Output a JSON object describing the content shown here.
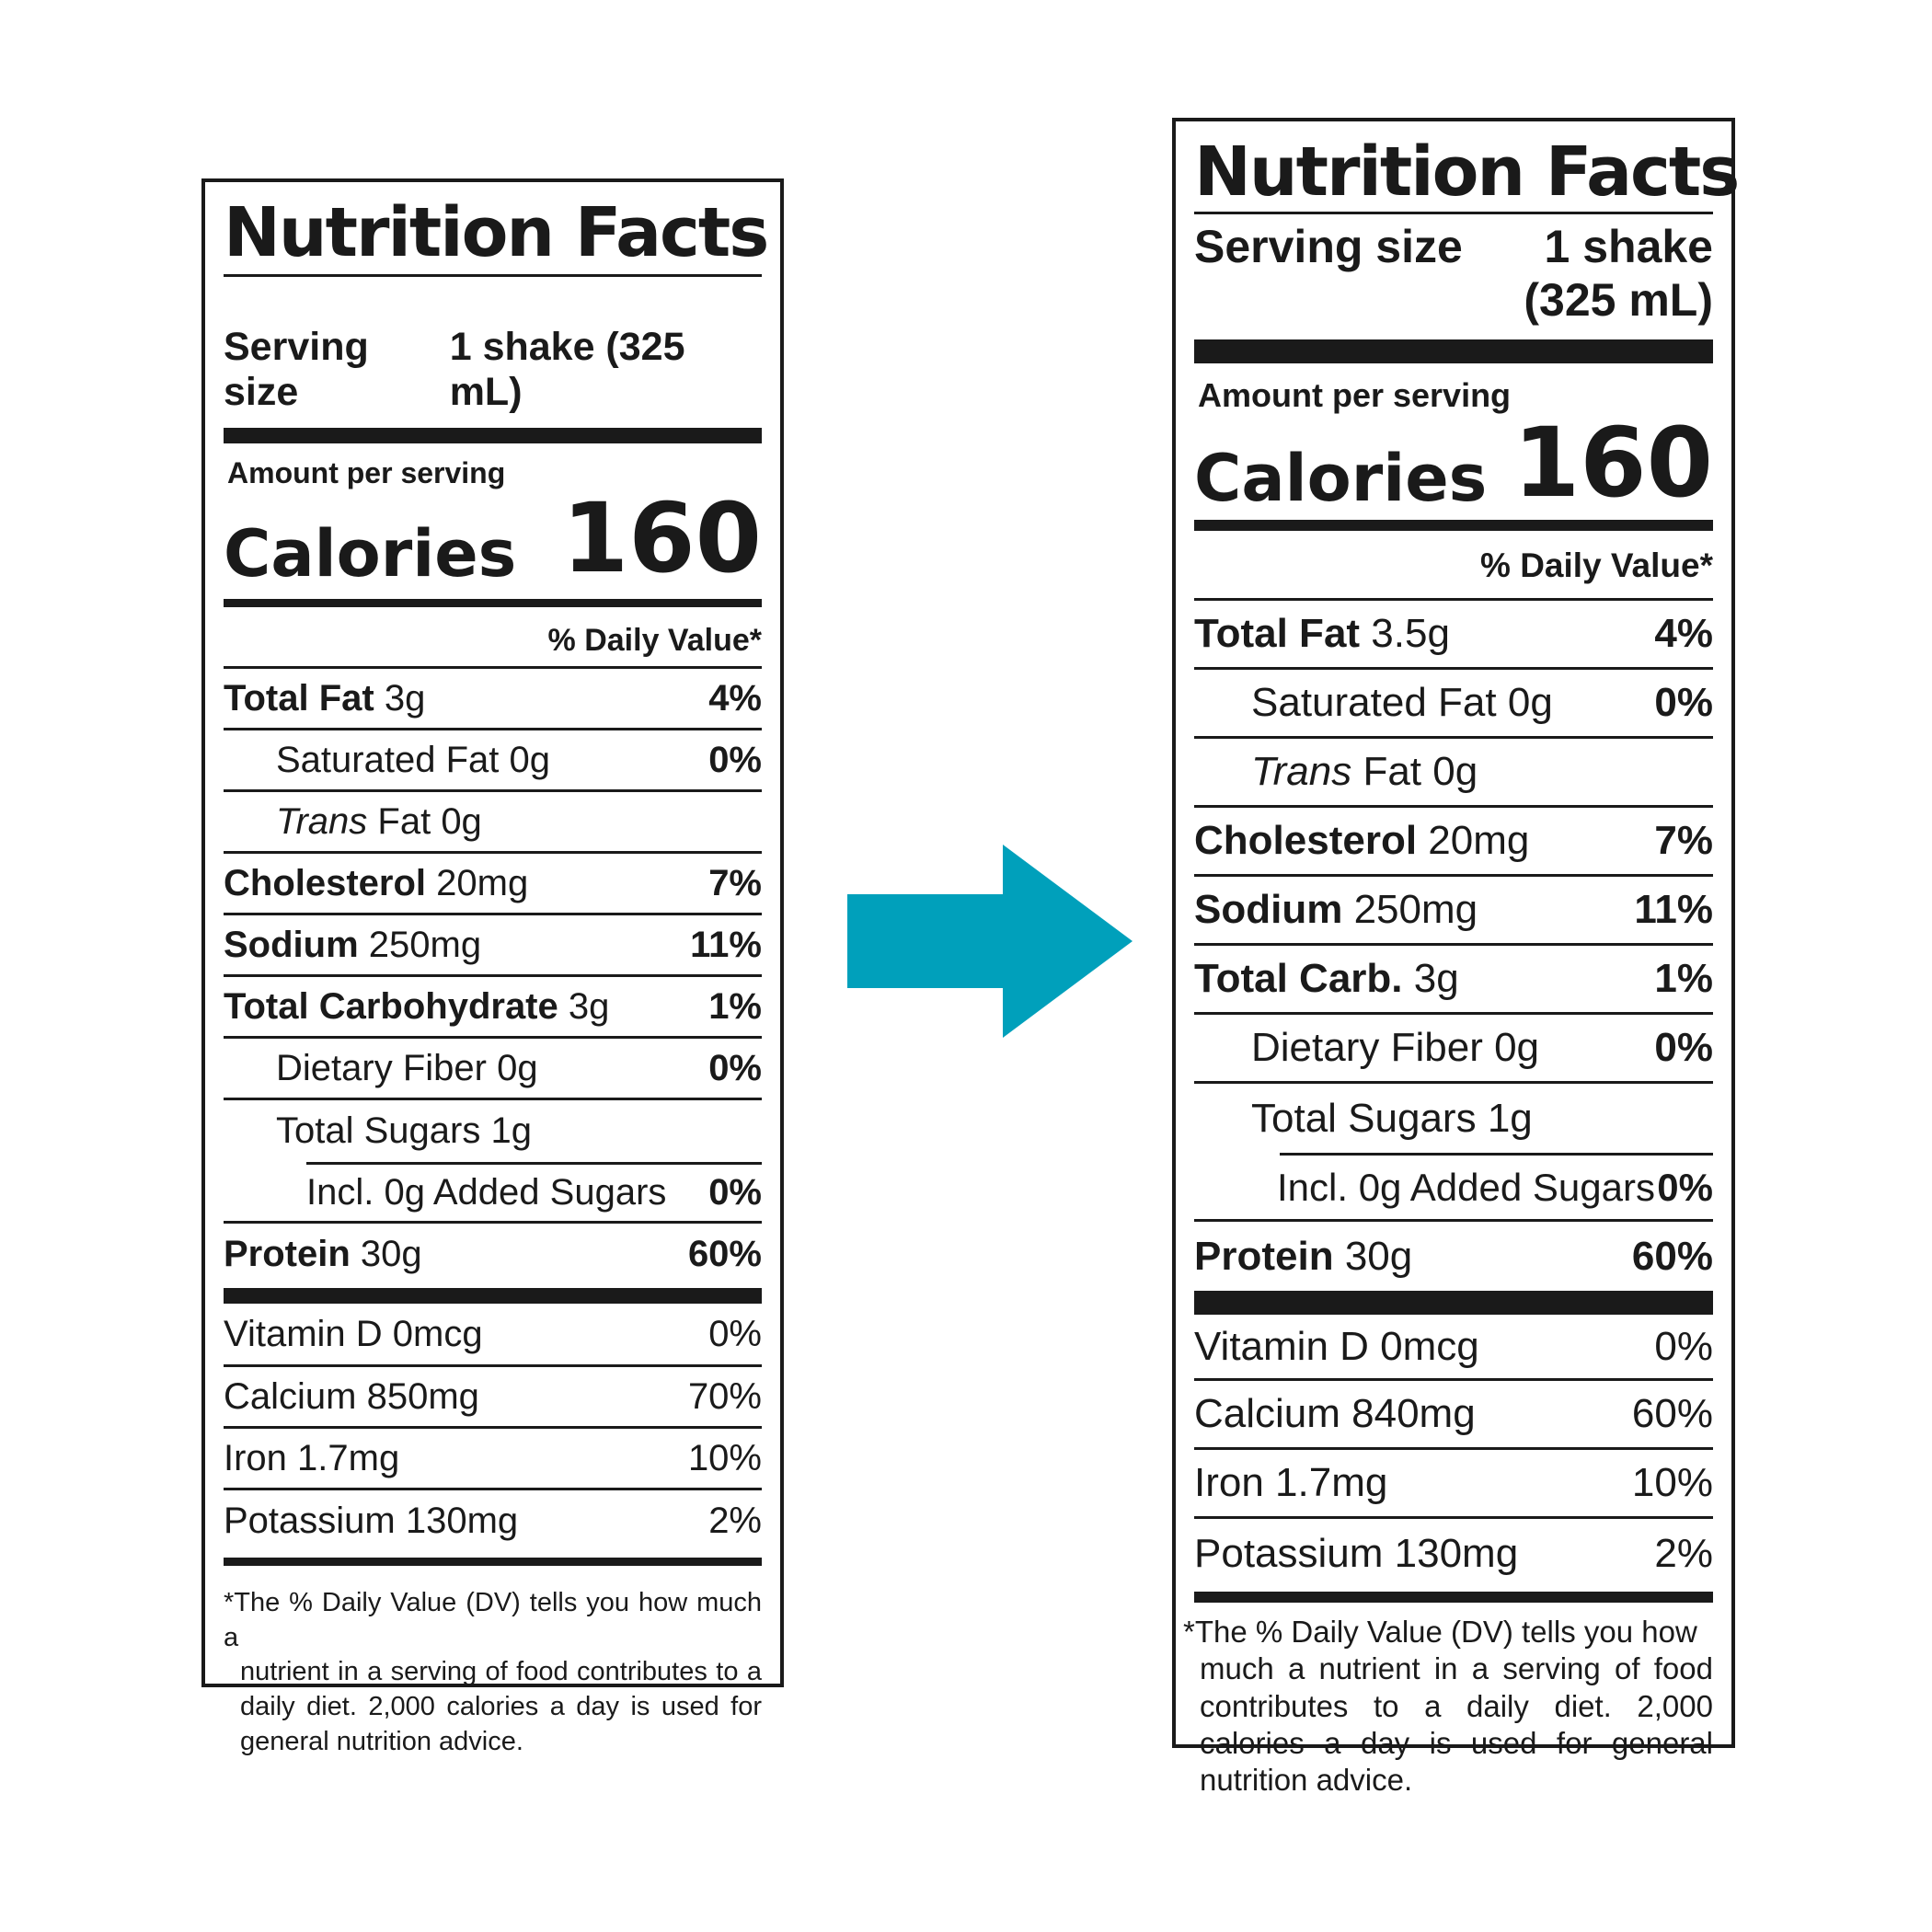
{
  "colors": {
    "arrow": "#00a0bb",
    "ink": "#1a1a1a"
  },
  "left_label": {
    "title": "Nutrition Facts",
    "serving_size_label": "Serving size",
    "serving_size_value": "1 shake (325 mL)",
    "amount_per_serving": "Amount per serving",
    "calories_label": "Calories",
    "calories_value": "160",
    "daily_value_header": "% Daily Value*",
    "nutrients": [
      {
        "name": "Total Fat",
        "amount": "3g",
        "dv": "4%"
      },
      {
        "name": "Saturated Fat",
        "amount": "0g",
        "dv": "0%"
      },
      {
        "name": "Trans",
        "suffix": "Fat 0g",
        "dv": ""
      },
      {
        "name": "Cholesterol",
        "amount": "20mg",
        "dv": "7%"
      },
      {
        "name": "Sodium",
        "amount": "250mg",
        "dv": "11%"
      },
      {
        "name": "Total Carbohydrate",
        "amount": "3g",
        "dv": "1%"
      },
      {
        "name": "Dietary Fiber",
        "amount": "0g",
        "dv": "0%"
      },
      {
        "name": "Total Sugars",
        "amount": "1g",
        "dv": ""
      },
      {
        "name": "Incl. 0g Added Sugars",
        "amount": "",
        "dv": "0%"
      },
      {
        "name": "Protein",
        "amount": "30g",
        "dv": "60%"
      }
    ],
    "vitamins": [
      {
        "name": "Vitamin D 0mcg",
        "dv": "0%"
      },
      {
        "name": "Calcium 850mg",
        "dv": "70%"
      },
      {
        "name": "Iron 1.7mg",
        "dv": "10%"
      },
      {
        "name": "Potassium 130mg",
        "dv": "2%"
      }
    ],
    "footnote_line1": "*The % Daily Value (DV) tells you how much a",
    "footnote_rest": "nutrient in a serving of food contributes to a daily diet. 2,000 calories a day is used for general nutrition advice."
  },
  "right_label": {
    "title": "Nutrition Facts",
    "serving_size_label": "Serving size",
    "serving_size_value_line1": "1 shake",
    "serving_size_value_line2": "(325 mL)",
    "amount_per_serving": "Amount per serving",
    "calories_label": "Calories",
    "calories_value": "160",
    "daily_value_header": "% Daily Value*",
    "nutrients": [
      {
        "name": "Total Fat",
        "amount": "3.5g",
        "dv": "4%"
      },
      {
        "name": "Saturated Fat",
        "amount": "0g",
        "dv": "0%"
      },
      {
        "name": "Trans",
        "suffix": "Fat 0g",
        "dv": ""
      },
      {
        "name": "Cholesterol",
        "amount": "20mg",
        "dv": "7%"
      },
      {
        "name": "Sodium",
        "amount": "250mg",
        "dv": "11%"
      },
      {
        "name": "Total Carb.",
        "amount": "3g",
        "dv": "1%"
      },
      {
        "name": "Dietary Fiber",
        "amount": "0g",
        "dv": "0%"
      },
      {
        "name": "Total Sugars",
        "amount": "1g",
        "dv": ""
      },
      {
        "name": "Incl. 0g Added Sugars",
        "amount": "",
        "dv": "0%"
      },
      {
        "name": "Protein",
        "amount": "30g",
        "dv": "60%"
      }
    ],
    "vitamins": [
      {
        "name": "Vitamin D 0mcg",
        "dv": "0%"
      },
      {
        "name": "Calcium 840mg",
        "dv": "60%"
      },
      {
        "name": "Iron 1.7mg",
        "dv": "10%"
      },
      {
        "name": "Potassium 130mg",
        "dv": "2%"
      }
    ],
    "footnote_line1": "*The % Daily Value (DV) tells you how",
    "footnote_rest": "much a nutrient in a serving of food contributes to a daily diet. 2,000 calories a day is used for general nutrition advice."
  }
}
